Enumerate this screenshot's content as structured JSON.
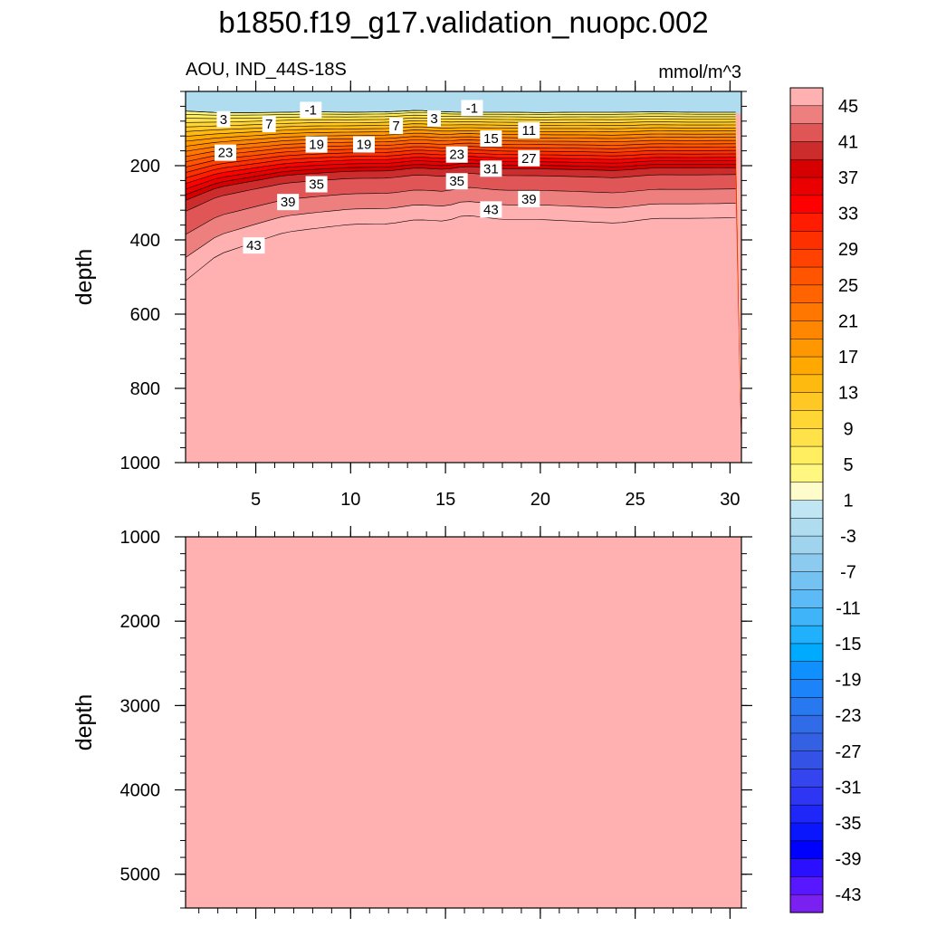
{
  "chart_data": {
    "type": "contour",
    "title": "b1850.f19_g17.validation_nuopc.002",
    "subtitle_left": "AOU, IND_44S-18S",
    "units": "mmol/m^3",
    "ylabel": "depth",
    "x_ticks": [
      "5",
      "10",
      "15",
      "20",
      "25",
      "30"
    ],
    "x_tick_values": [
      5,
      10,
      15,
      20,
      25,
      30
    ],
    "xlim": [
      1.3,
      30.6
    ],
    "panels": [
      {
        "name": "upper",
        "ylim": [
          1000,
          0
        ],
        "y_ticks": [
          "200",
          "400",
          "600",
          "800",
          "1000"
        ],
        "y_tick_values": [
          200,
          400,
          600,
          800,
          1000
        ]
      },
      {
        "name": "lower",
        "ylim": [
          5400,
          1000
        ],
        "y_ticks": [
          "1000",
          "2000",
          "3000",
          "4000",
          "5000"
        ],
        "y_tick_values": [
          1000,
          2000,
          3000,
          4000,
          5000
        ]
      }
    ],
    "contour_levels": [
      -45,
      -43,
      -41,
      -39,
      -37,
      -35,
      -33,
      -31,
      -29,
      -27,
      -25,
      -23,
      -21,
      -19,
      -17,
      -15,
      -13,
      -11,
      -9,
      -7,
      -5,
      -3,
      -1,
      1,
      3,
      5,
      7,
      9,
      11,
      13,
      15,
      17,
      19,
      21,
      23,
      25,
      27,
      29,
      31,
      33,
      35,
      37,
      39,
      41,
      43,
      45
    ],
    "colorbar_labels": [
      "45",
      "41",
      "37",
      "33",
      "29",
      "25",
      "21",
      "17",
      "13",
      "9",
      "5",
      "1",
      "-3",
      "-7",
      "-11",
      "-15",
      "-19",
      "-23",
      "-27",
      "-31",
      "-35",
      "-39",
      "-43"
    ],
    "colorbar_colors": [
      "#ffb1b1",
      "#ee7f7f",
      "#e05656",
      "#cd2c2c",
      "#d60000",
      "#ea0000",
      "#ff0000",
      "#ff1c00",
      "#ff3000",
      "#ff4200",
      "#ff5400",
      "#ff6400",
      "#ff7600",
      "#ff8600",
      "#ff9800",
      "#ffa800",
      "#ffba10",
      "#ffc824",
      "#ffd634",
      "#ffe24a",
      "#ffee60",
      "#fff780",
      "#fffccc",
      "#c0e6f4",
      "#b0dcf0",
      "#a0d4ee",
      "#8ccaf0",
      "#74c2f2",
      "#5cbaf6",
      "#40b4f8",
      "#20b0fc",
      "#00aaff",
      "#1090ff",
      "#1c84f8",
      "#2878f0",
      "#306ce8",
      "#3460e4",
      "#3452e6",
      "#3444ee",
      "#2e36f4",
      "#1e26f8",
      "#0a16fc",
      "#0000ff",
      "#2a10ff",
      "#5818ff",
      "#7a20f0"
    ],
    "contour_labels": [
      {
        "value": "-1",
        "x": 7.9,
        "depth": 50
      },
      {
        "value": "-1",
        "x": 16.4,
        "depth": 45
      },
      {
        "value": "3",
        "x": 3.3,
        "depth": 75
      },
      {
        "value": "3",
        "x": 14.4,
        "depth": 73
      },
      {
        "value": "7",
        "x": 5.7,
        "depth": 88
      },
      {
        "value": "7",
        "x": 12.4,
        "depth": 93
      },
      {
        "value": "11",
        "x": 19.4,
        "depth": 105
      },
      {
        "value": "15",
        "x": 17.4,
        "depth": 127
      },
      {
        "value": "19",
        "x": 8.2,
        "depth": 143
      },
      {
        "value": "19",
        "x": 10.7,
        "depth": 143
      },
      {
        "value": "23",
        "x": 3.4,
        "depth": 165
      },
      {
        "value": "23",
        "x": 15.6,
        "depth": 170
      },
      {
        "value": "27",
        "x": 19.4,
        "depth": 180
      },
      {
        "value": "31",
        "x": 17.4,
        "depth": 208
      },
      {
        "value": "35",
        "x": 8.2,
        "depth": 250
      },
      {
        "value": "35",
        "x": 15.6,
        "depth": 242
      },
      {
        "value": "39",
        "x": 6.7,
        "depth": 298
      },
      {
        "value": "39",
        "x": 19.4,
        "depth": 290
      },
      {
        "value": "43",
        "x": 17.4,
        "depth": 318
      },
      {
        "value": "43",
        "x": 4.9,
        "depth": 415
      }
    ],
    "surface_value": -3,
    "deep_value": 45
  }
}
